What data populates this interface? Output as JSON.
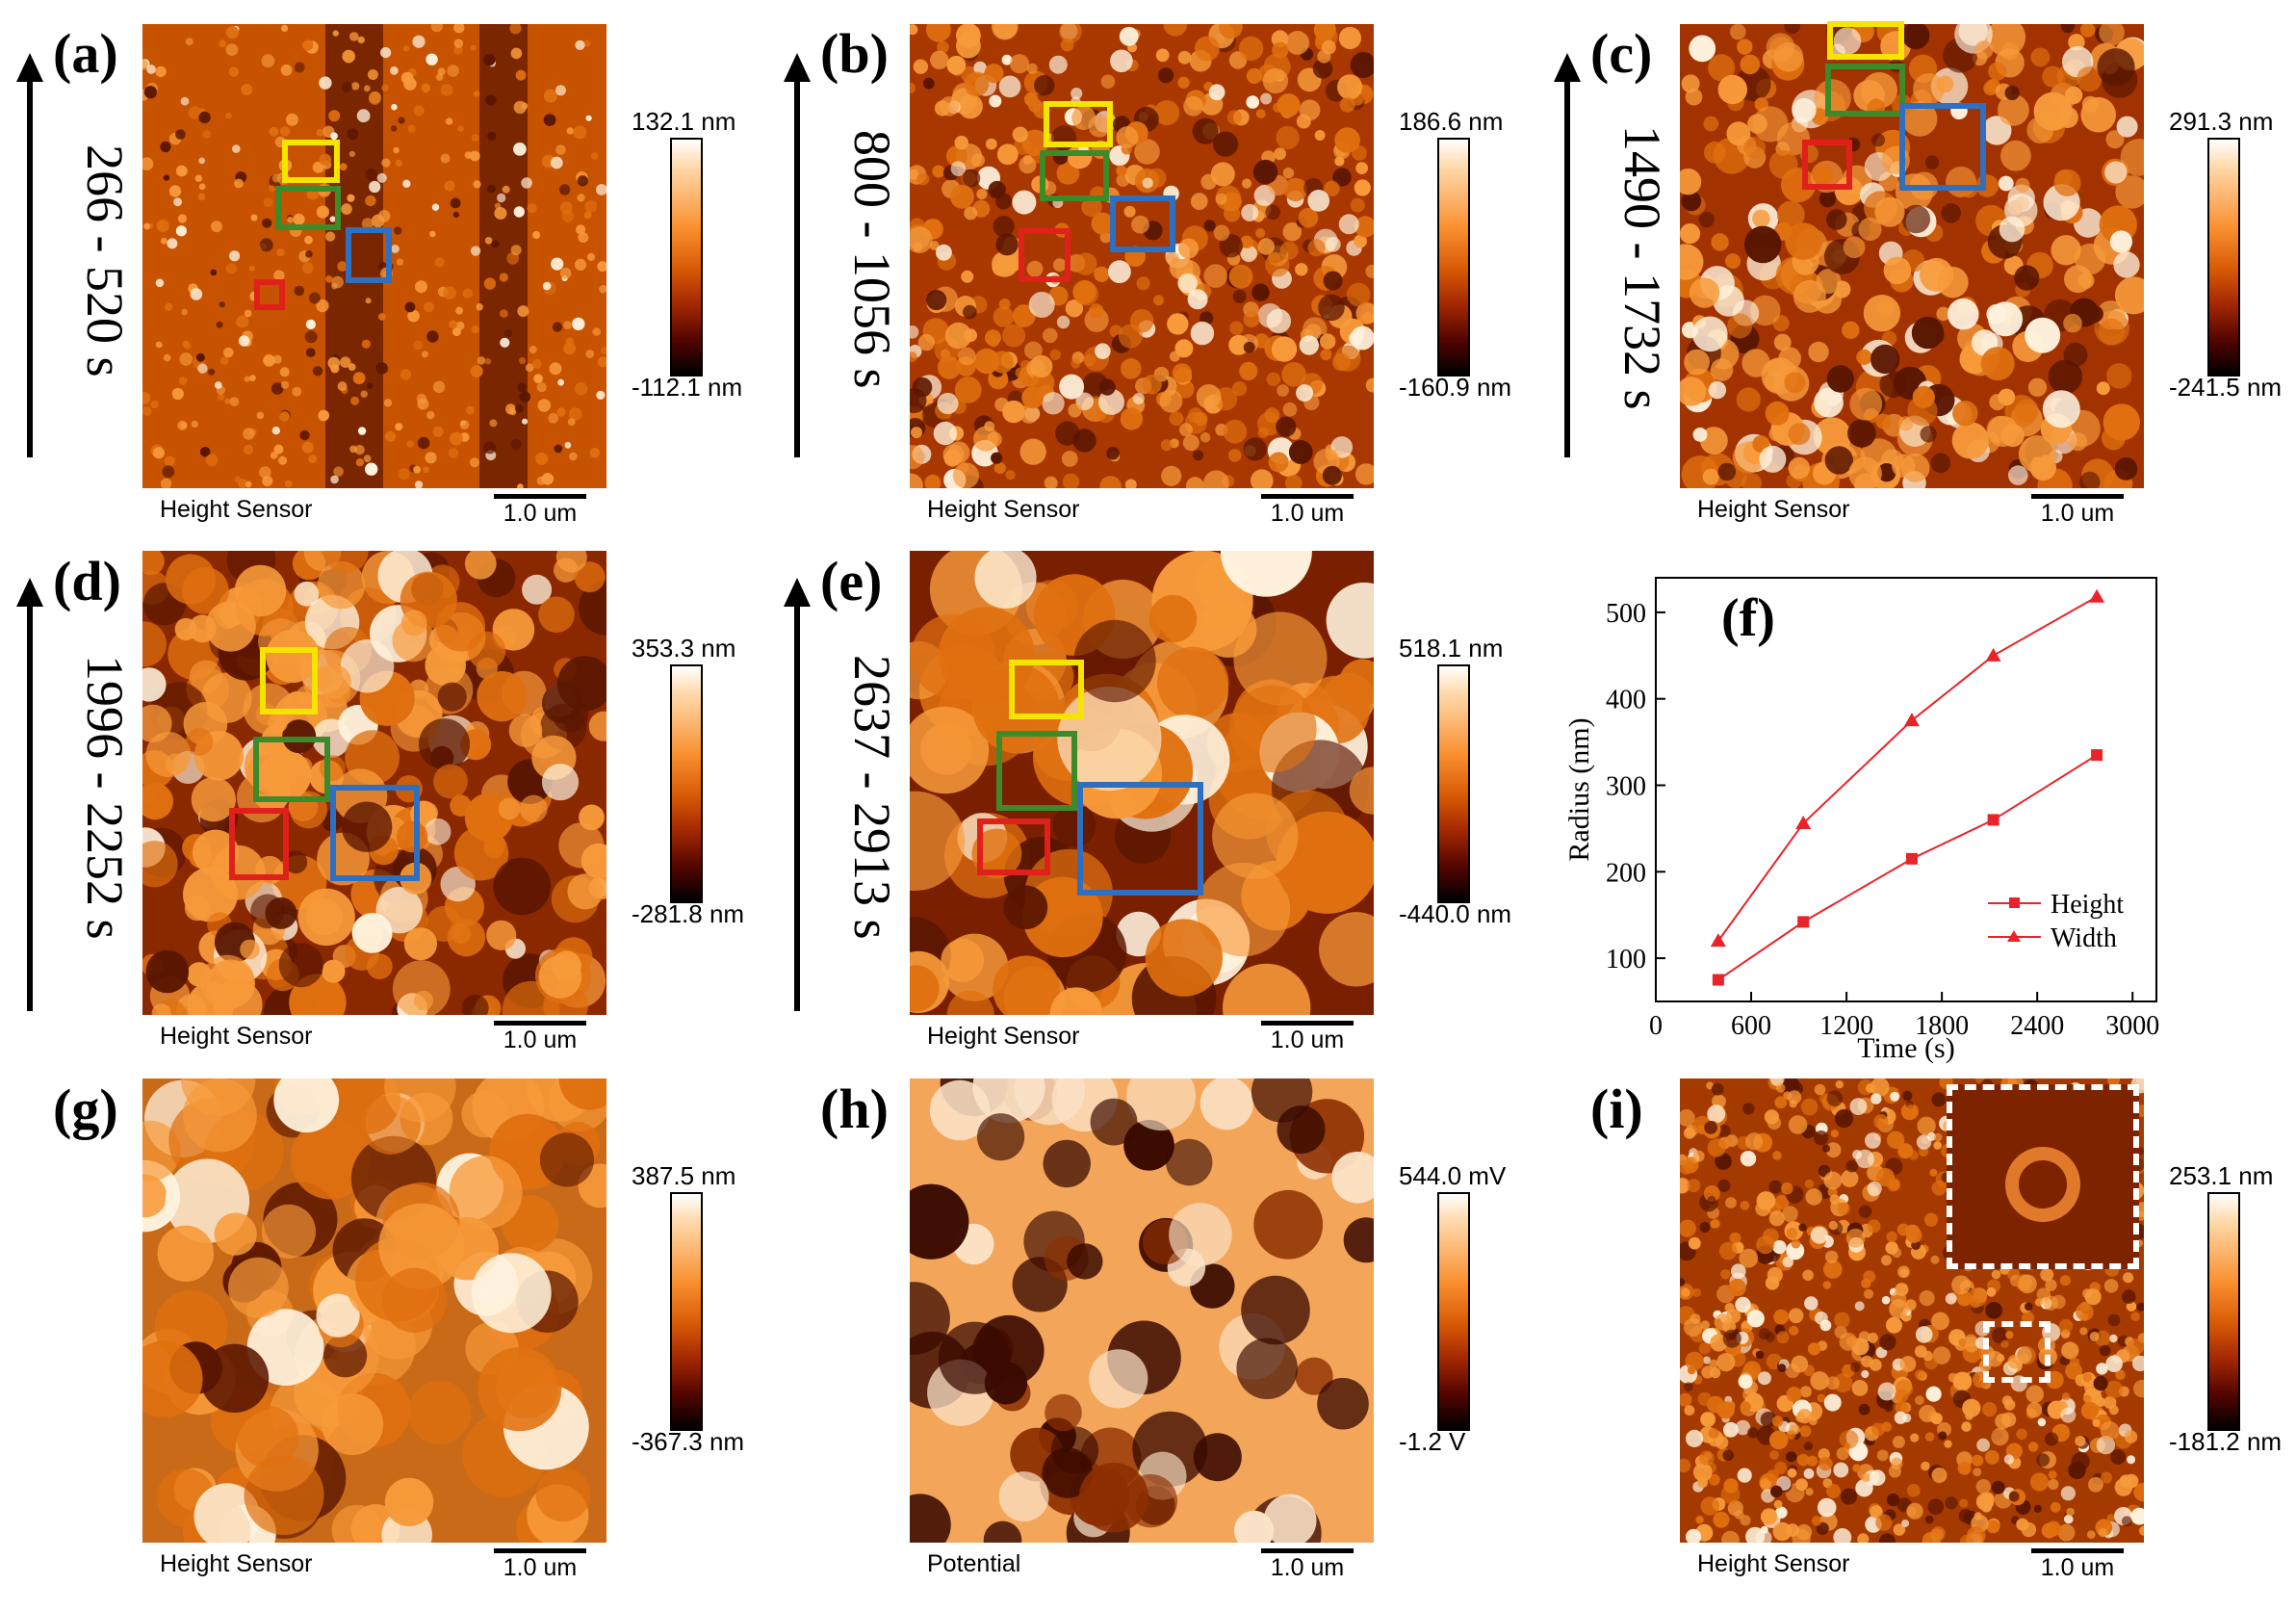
{
  "figure": {
    "panels": [
      {
        "label": "(a)",
        "time": "266 - 520 s",
        "cmax": "132.1 nm",
        "cmin": "-112.1 nm",
        "sensor": "Height Sensor",
        "scale": "1.0 um"
      },
      {
        "label": "(b)",
        "time": "800 - 1056 s",
        "cmax": "186.6 nm",
        "cmin": "-160.9 nm",
        "sensor": "Height Sensor",
        "scale": "1.0 um"
      },
      {
        "label": "(c)",
        "time": "1490 - 1732 s",
        "cmax": "291.3 nm",
        "cmin": "-241.5 nm",
        "sensor": "Height Sensor",
        "scale": "1.0 um"
      },
      {
        "label": "(d)",
        "time": "1996 - 2252 s",
        "cmax": "353.3 nm",
        "cmin": "-281.8 nm",
        "sensor": "Height Sensor",
        "scale": "1.0 um"
      },
      {
        "label": "(e)",
        "time": "2637 - 2913 s",
        "cmax": "518.1 nm",
        "cmin": "-440.0 nm",
        "sensor": "Height Sensor",
        "scale": "1.0 um"
      },
      {
        "label": "(g)",
        "time": "",
        "cmax": "387.5 nm",
        "cmin": "-367.3 nm",
        "sensor": "Height Sensor",
        "scale": "1.0 um"
      },
      {
        "label": "(h)",
        "time": "",
        "cmax": "544.0 mV",
        "cmin": "-1.2 V",
        "sensor": "Potential",
        "scale": "1.0 um"
      },
      {
        "label": "(i)",
        "time": "",
        "cmax": "253.1 nm",
        "cmin": "-181.2 nm",
        "sensor": "Height Sensor",
        "scale": "1.0 um"
      }
    ],
    "box_colors": {
      "yellow": "#f5e400",
      "green": "#3d8a2a",
      "blue": "#2f6fbf",
      "red": "#e0211b",
      "inset": "#ffffff"
    }
  },
  "chart_data": {
    "type": "line",
    "panel_label": "(f)",
    "xlabel": "Time (s)",
    "ylabel": "Radius (nm)",
    "xlim": [
      0,
      3150
    ],
    "ylim": [
      50,
      540
    ],
    "xticks": [
      "0",
      "600",
      "1200",
      "1800",
      "2400",
      "3000"
    ],
    "yticks": [
      "100",
      "200",
      "300",
      "400",
      "500"
    ],
    "color": "#e8242a",
    "series": [
      {
        "name": "Height",
        "marker": "square",
        "x": [
          393,
          928,
          1611,
          2124,
          2775
        ],
        "y": [
          75,
          142,
          215,
          260,
          335
        ]
      },
      {
        "name": "Width",
        "marker": "triangle",
        "x": [
          393,
          928,
          1611,
          2124,
          2775
        ],
        "y": [
          120,
          256,
          375,
          450,
          518
        ]
      }
    ]
  }
}
